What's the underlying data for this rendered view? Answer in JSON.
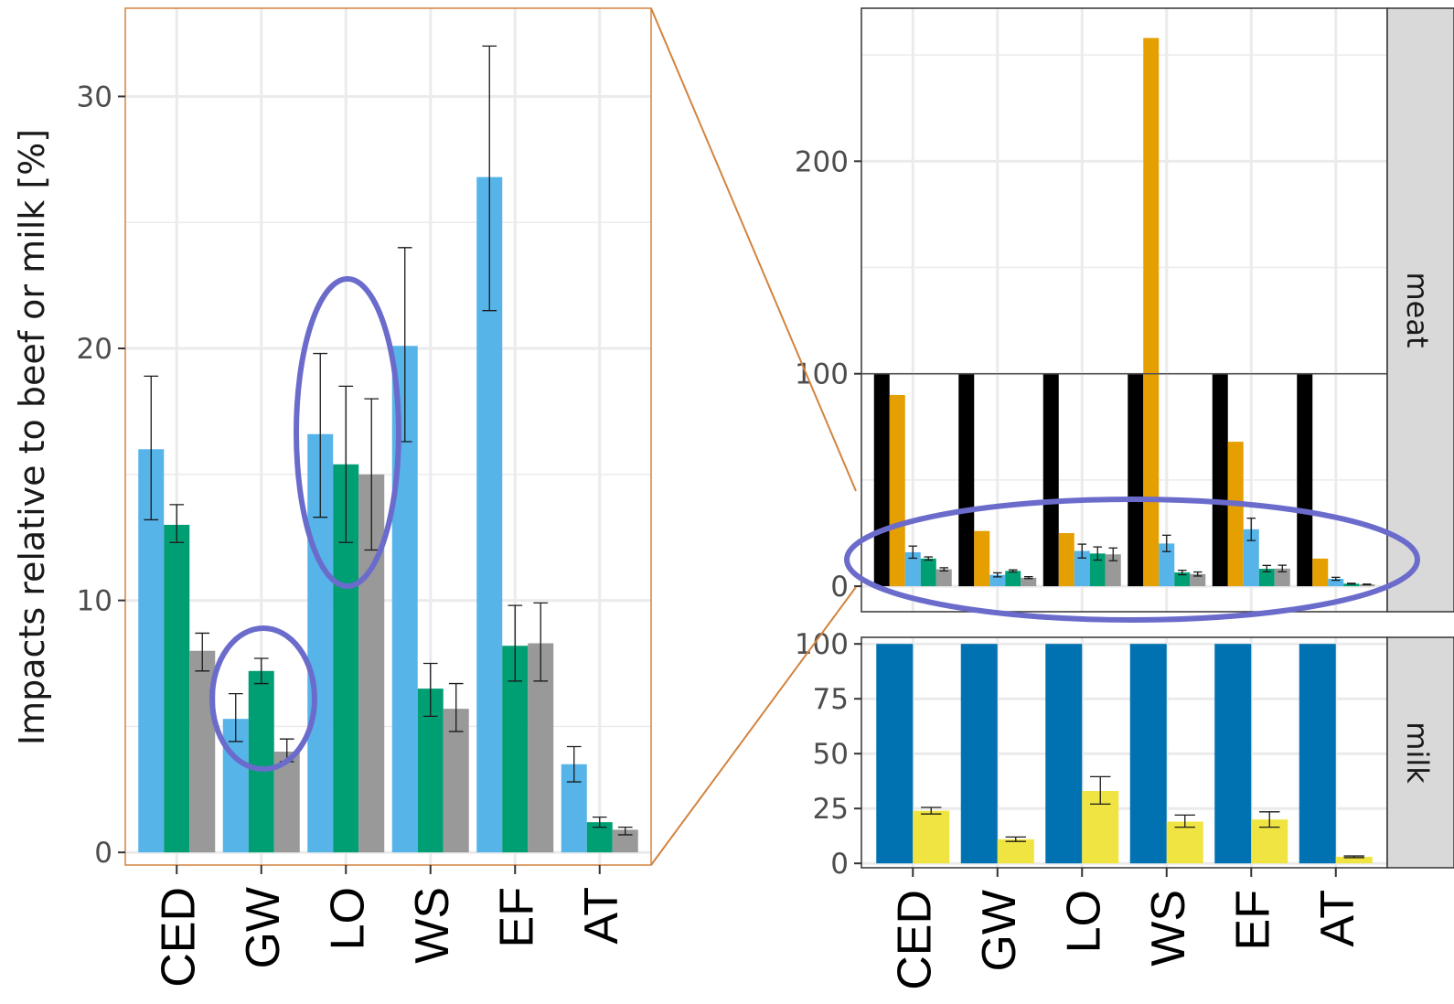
{
  "chart_data": [
    {
      "type": "bar",
      "panel": "left",
      "categories": [
        "CED",
        "GW",
        "LO",
        "WS",
        "EF",
        "AT"
      ],
      "ylabel": "Impacts relative to beef or milk [%]",
      "ylim": [
        -0.5,
        33.5
      ],
      "yticks": [
        0,
        10,
        20,
        30
      ],
      "grid": true,
      "series": [
        {
          "color": "#56B4E9",
          "values": [
            16.0,
            5.3,
            16.6,
            20.1,
            26.8,
            3.5
          ],
          "err_low": [
            13.2,
            4.4,
            13.3,
            16.3,
            21.5,
            2.8
          ],
          "err_high": [
            18.9,
            6.3,
            19.8,
            24.0,
            32.0,
            4.2
          ]
        },
        {
          "color": "#009E73",
          "values": [
            13.0,
            7.2,
            15.4,
            6.5,
            8.2,
            1.2
          ],
          "err_low": [
            12.3,
            6.7,
            12.3,
            5.4,
            6.8,
            1.0
          ],
          "err_high": [
            13.8,
            7.7,
            18.5,
            7.5,
            9.8,
            1.4
          ]
        },
        {
          "color": "#999999",
          "values": [
            8.0,
            4.0,
            15.0,
            5.7,
            8.3,
            0.9
          ],
          "err_low": [
            7.2,
            3.6,
            12.0,
            4.8,
            6.8,
            0.7
          ],
          "err_high": [
            8.7,
            4.5,
            18.0,
            6.7,
            9.9,
            1.0
          ]
        }
      ],
      "annotations": [
        "ellipse around GW",
        "ellipse around LO"
      ]
    },
    {
      "type": "bar",
      "panel": "meat",
      "strip_label": "meat",
      "categories": [
        "CED",
        "GW",
        "LO",
        "WS",
        "EF",
        "AT"
      ],
      "ylim": [
        -12,
        272
      ],
      "yticks": [
        0,
        100,
        200
      ],
      "grid": true,
      "series": [
        {
          "color": "#000000",
          "values": [
            100,
            100,
            100,
            100,
            100,
            100
          ]
        },
        {
          "color": "#E69F00",
          "values": [
            90,
            26,
            25,
            258,
            68,
            13
          ]
        },
        {
          "color": "#56B4E9",
          "values": [
            16,
            5.3,
            16.6,
            20.1,
            26.8,
            3.5
          ],
          "err_low": [
            13.2,
            4.4,
            13.3,
            16.3,
            21.5,
            2.8
          ],
          "err_high": [
            18.9,
            6.3,
            19.8,
            24.0,
            32.0,
            4.2
          ]
        },
        {
          "color": "#009E73",
          "values": [
            13,
            7.2,
            15.4,
            6.5,
            8.2,
            1.2
          ],
          "err_low": [
            12.3,
            6.7,
            12.3,
            5.4,
            6.8,
            1.0
          ],
          "err_high": [
            13.8,
            7.7,
            18.5,
            7.5,
            9.8,
            1.4
          ]
        },
        {
          "color": "#999999",
          "values": [
            8,
            4,
            15,
            5.7,
            8.3,
            0.9
          ],
          "err_low": [
            7.2,
            3.6,
            12.0,
            4.8,
            6.8,
            0.7
          ],
          "err_high": [
            8.7,
            4.5,
            18.0,
            6.7,
            9.9,
            1.0
          ]
        }
      ],
      "annotations": [
        "ellipse around the 0-30 range",
        "zoom connector to left panel"
      ]
    },
    {
      "type": "bar",
      "panel": "milk",
      "strip_label": "milk",
      "categories": [
        "CED",
        "GW",
        "LO",
        "WS",
        "EF",
        "AT"
      ],
      "ylim": [
        -2,
        103
      ],
      "yticks": [
        0,
        25,
        50,
        75,
        100
      ],
      "grid": true,
      "series": [
        {
          "color": "#0072B2",
          "values": [
            100,
            100,
            100,
            100,
            100,
            100
          ]
        },
        {
          "color": "#F0E442",
          "values": [
            24,
            11,
            33,
            19,
            20,
            3
          ],
          "err_low": [
            22.5,
            10,
            27,
            16.5,
            16.5,
            2.6
          ],
          "err_high": [
            25.5,
            12,
            39.5,
            22,
            23.5,
            3.4
          ]
        }
      ]
    }
  ],
  "colors": {
    "grid": "#ebebeb",
    "axis": "#333333",
    "strip_bg": "#d9d9d9",
    "annotation": "#6b6bcc",
    "connector": "#d2843e"
  }
}
